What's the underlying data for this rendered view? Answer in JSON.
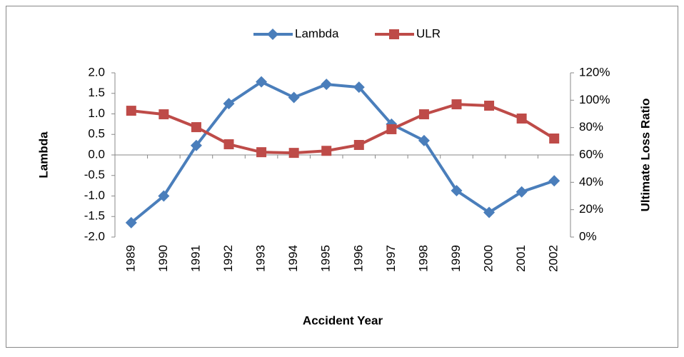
{
  "chart_data": {
    "type": "line",
    "x_label": "Accident Year",
    "y_label": "Lambda",
    "y2_label": "Ultimate Loss Ratio",
    "categories": [
      "1989",
      "1990",
      "1991",
      "1992",
      "1993",
      "1994",
      "1995",
      "1996",
      "1997",
      "1998",
      "1999",
      "2000",
      "2001",
      "2002"
    ],
    "series": [
      {
        "name": "Lambda",
        "color": "#4a7ebb",
        "marker": "diamond",
        "values": [
          -1.65,
          -1.0,
          0.23,
          1.25,
          1.78,
          1.4,
          1.72,
          1.65,
          0.75,
          0.35,
          -0.87,
          -1.4,
          -0.9,
          -0.63
        ]
      },
      {
        "name": "ULR",
        "color": "#be4b48",
        "marker": "square",
        "axis": "y2",
        "values": [
          92.3,
          89.7,
          80.3,
          67.8,
          62,
          61.5,
          63,
          67.3,
          78.8,
          89.7,
          97,
          96,
          86.6,
          72
        ]
      }
    ],
    "ylim": [
      -2,
      2
    ],
    "yticks": [
      {
        "value": 2,
        "label": "2.0"
      },
      1.5,
      {
        "value": 1,
        "label": "1.0"
      },
      0.5,
      {
        "value": 0,
        "label": "0.0"
      },
      -0.5,
      {
        "value": -1,
        "label": "-1.0"
      },
      -1.5,
      {
        "value": -2,
        "label": "-2.0"
      }
    ],
    "y2lim": [
      0,
      120
    ],
    "y2ticks": [
      {
        "value": 120,
        "label": "120%"
      },
      {
        "value": 100,
        "label": "100%"
      },
      {
        "value": 80,
        "label": "80%"
      },
      {
        "value": 60,
        "label": "60%"
      },
      {
        "value": 40,
        "label": "40%"
      },
      {
        "value": 20,
        "label": "20%"
      },
      {
        "value": 0,
        "label": "0%"
      }
    ],
    "legend": "top",
    "grid": false
  }
}
